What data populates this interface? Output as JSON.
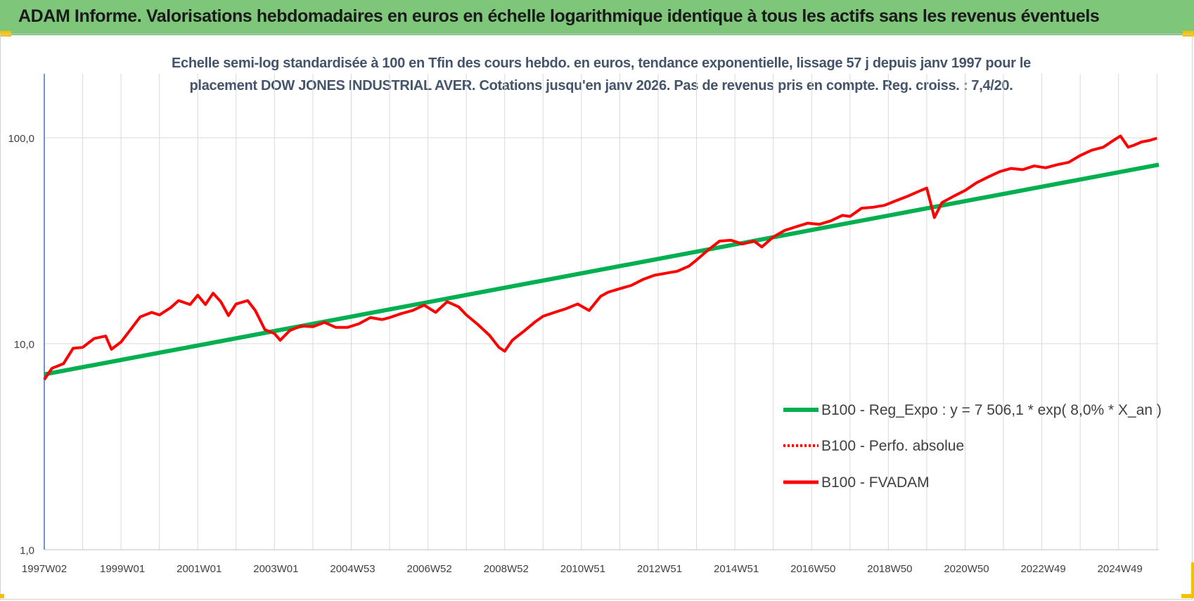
{
  "header": {
    "title": "ADAM Informe. Valorisations hebdomadaires en euros en échelle logarithmique identique à tous les actifs sans les revenus éventuels"
  },
  "chart_data": {
    "type": "line",
    "title": "Echelle semi-log standardisée à 100 en Tfin des cours hebdo. en euros, tendance exponentielle, lissage 57 j depuis janv 1997 pour le placement DOW JONES INDUSTRIAL AVER. Cotations jusqu'en janv 2026. Pas de revenus pris en compte. Reg. croiss. : 7,4/20.",
    "title_lines": [
      "Echelle semi-log standardisée à 100 en Tfin des cours hebdo. en euros, tendance exponentielle, lissage 57 j depuis janv 1997 pour le",
      "placement DOW JONES INDUSTRIAL AVER. Cotations jusqu'en janv 2026. Pas de revenus pris en compte. Reg. croiss. : 7,4/20."
    ],
    "y_scale": "log",
    "ylim": [
      1,
      100
    ],
    "y_ticks": [
      "1,0",
      "10,0",
      "100,0"
    ],
    "y_tick_values": [
      1,
      10,
      100
    ],
    "xlim": [
      1997.0,
      2026.05
    ],
    "x_tick_labels": [
      "1997W02",
      "1999W01",
      "2001W01",
      "2003W01",
      "2004W53",
      "2006W52",
      "2008W52",
      "2010W51",
      "2012W51",
      "2014W51",
      "2016W50",
      "2018W50",
      "2020W50",
      "2022W49",
      "2024W49"
    ],
    "x_tick_positions": [
      1997.0,
      1999.0,
      2001.0,
      2003.0,
      2005.0,
      2007.0,
      2009.0,
      2011.0,
      2013.0,
      2015.0,
      2017.0,
      2019.0,
      2021.0,
      2023.0,
      2025.0
    ],
    "grid": true,
    "legend_position": "right",
    "colors": {
      "trend": "#00b050",
      "perf": "#ff0000",
      "fvadam": "#ff0000",
      "grid": "#d9d9d9",
      "axis": "#4472c4"
    },
    "series": [
      {
        "name": "B100 - Reg_Expo : y = 7 506,1 * exp( 8,0% *  X_an )",
        "style": "solid-green",
        "x": [
          1997.0,
          2026.05
        ],
        "values": [
          7.1,
          74.0
        ]
      },
      {
        "name": "B100 - Perfo. absolue",
        "style": "dotted-red",
        "x": [],
        "values": []
      },
      {
        "name": "B100 - FVADAM",
        "style": "solid-red",
        "x": [
          1997.0,
          1997.2,
          1997.5,
          1997.75,
          1998.0,
          1998.3,
          1998.6,
          1998.75,
          1999.0,
          1999.2,
          1999.5,
          1999.8,
          2000.0,
          2000.3,
          2000.5,
          2000.8,
          2001.0,
          2001.2,
          2001.4,
          2001.6,
          2001.8,
          2002.0,
          2002.3,
          2002.5,
          2002.75,
          2003.0,
          2003.15,
          2003.4,
          2003.7,
          2004.0,
          2004.3,
          2004.6,
          2004.9,
          2005.2,
          2005.5,
          2005.8,
          2006.0,
          2006.3,
          2006.6,
          2006.9,
          2007.2,
          2007.5,
          2007.8,
          2008.0,
          2008.3,
          2008.6,
          2008.85,
          2009.0,
          2009.2,
          2009.5,
          2009.8,
          2010.0,
          2010.3,
          2010.6,
          2010.9,
          2011.2,
          2011.5,
          2011.7,
          2012.0,
          2012.3,
          2012.6,
          2012.9,
          2013.2,
          2013.5,
          2013.8,
          2014.0,
          2014.3,
          2014.6,
          2014.9,
          2015.2,
          2015.5,
          2015.7,
          2016.0,
          2016.3,
          2016.6,
          2016.9,
          2017.2,
          2017.5,
          2017.8,
          2018.0,
          2018.3,
          2018.6,
          2018.9,
          2019.2,
          2019.5,
          2019.8,
          2020.0,
          2020.2,
          2020.4,
          2020.7,
          2021.0,
          2021.3,
          2021.6,
          2021.9,
          2022.2,
          2022.5,
          2022.8,
          2023.1,
          2023.4,
          2023.7,
          2024.0,
          2024.3,
          2024.6,
          2024.9,
          2025.05,
          2025.25,
          2025.4,
          2025.6,
          2025.8,
          2026.0
        ],
        "values": [
          6.7,
          7.6,
          8.0,
          9.5,
          9.6,
          10.6,
          10.9,
          9.4,
          10.2,
          11.4,
          13.5,
          14.2,
          13.8,
          15.0,
          16.2,
          15.5,
          17.2,
          15.5,
          17.6,
          16.0,
          13.7,
          15.6,
          16.2,
          14.5,
          11.7,
          11.2,
          10.4,
          11.6,
          12.2,
          12.1,
          12.7,
          12.0,
          12.0,
          12.5,
          13.4,
          13.1,
          13.4,
          14.0,
          14.5,
          15.4,
          14.2,
          16.0,
          15.1,
          13.8,
          12.4,
          11.0,
          9.6,
          9.2,
          10.4,
          11.5,
          12.8,
          13.6,
          14.2,
          14.8,
          15.6,
          14.5,
          17.0,
          17.8,
          18.5,
          19.2,
          20.5,
          21.5,
          22.0,
          22.5,
          23.8,
          25.5,
          28.5,
          31.5,
          31.8,
          30.5,
          31.5,
          29.5,
          33.0,
          35.5,
          37.0,
          38.5,
          38.0,
          39.5,
          42.0,
          41.5,
          45.5,
          46.0,
          47.0,
          49.5,
          52.0,
          55.0,
          57.0,
          41.0,
          48.5,
          52.0,
          55.5,
          60.5,
          64.5,
          68.5,
          71.0,
          70.0,
          73.0,
          71.5,
          74.0,
          76.0,
          82.0,
          87.0,
          90.0,
          98.0,
          102.0,
          90.0,
          92.0,
          95.5,
          97.0,
          99.5
        ]
      }
    ]
  }
}
